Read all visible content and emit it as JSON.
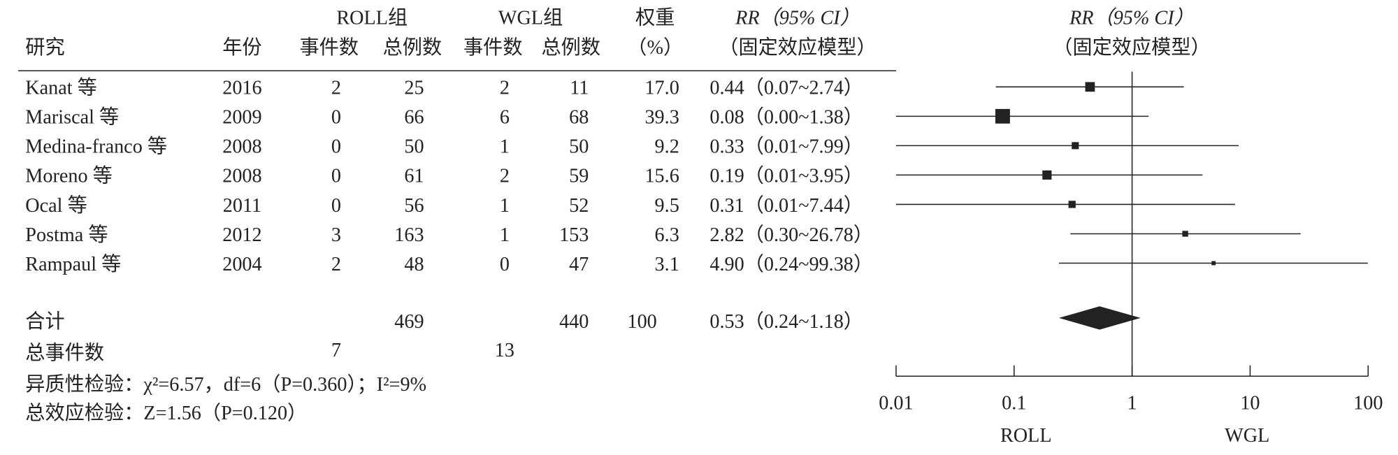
{
  "chart_data": {
    "type": "forest",
    "headers": {
      "study": "研究",
      "year": "年份",
      "roll_group": "ROLL组",
      "wgl_group": "WGL组",
      "events_roll": "事件数",
      "total_roll": "总例数",
      "events_wgl": "事件数",
      "total_wgl": "总例数",
      "weight": "权重",
      "weight_unit": "（%）",
      "rr_title": "RR（95% CI）",
      "rr_model": "（固定效应模型）",
      "plot_title": "RR（95% CI）",
      "plot_model": "（固定效应模型）"
    },
    "categories": [
      "Kanat 等",
      "Mariscal 等",
      "Medina-franco 等",
      "Moreno 等",
      "Ocal 等",
      "Postma 等",
      "Rampaul 等"
    ],
    "years": [
      2016,
      2009,
      2008,
      2008,
      2011,
      2012,
      2004
    ],
    "roll_events": [
      2,
      0,
      0,
      0,
      0,
      3,
      2
    ],
    "roll_totals": [
      25,
      66,
      50,
      61,
      56,
      163,
      48
    ],
    "wgl_events": [
      2,
      6,
      1,
      2,
      1,
      1,
      0
    ],
    "wgl_totals": [
      11,
      68,
      50,
      59,
      52,
      153,
      47
    ],
    "weights": [
      17,
      39.3,
      9.2,
      15.6,
      9.5,
      6.3,
      3.1
    ],
    "weight_labels": [
      "17.0",
      "39.3",
      "9.2",
      "15.6",
      "9.5",
      "6.3",
      "3.1"
    ],
    "rr": [
      0.44,
      0.08,
      0.33,
      0.19,
      0.31,
      2.82,
      4.9
    ],
    "ci_low": [
      0.07,
      0.0,
      0.01,
      0.01,
      0.01,
      0.3,
      0.24
    ],
    "ci_high": [
      2.74,
      1.38,
      7.99,
      3.95,
      7.44,
      26.78,
      99.38
    ],
    "rr_labels": [
      "0.44（0.07~2.74）",
      "0.08（0.00~1.38）",
      "0.33（0.01~7.99）",
      "0.19（0.01~3.95）",
      "0.31（0.01~7.44）",
      "2.82（0.30~26.78）",
      "4.90（0.24~99.38）"
    ],
    "total": {
      "label": "合计",
      "roll_total": 469,
      "wgl_total": 440,
      "weight": 100,
      "rr": 0.53,
      "ci_low": 0.24,
      "ci_high": 1.18,
      "rr_label": "0.53（0.24~1.18）"
    },
    "events_total": {
      "label": "总事件数",
      "roll": 7,
      "wgl": 13
    },
    "heterogeneity": "异质性检验：χ²=6.57，df=6（P=0.360）；I²=9%",
    "overall_effect": "总效应检验：Z=1.56（P=0.120）",
    "xlim": [
      0.01,
      100
    ],
    "xticks": [
      0.01,
      0.1,
      1,
      10,
      100
    ],
    "log_x": true,
    "favors_left": "ROLL",
    "favors_right": "WGL",
    "color": "#222222"
  }
}
